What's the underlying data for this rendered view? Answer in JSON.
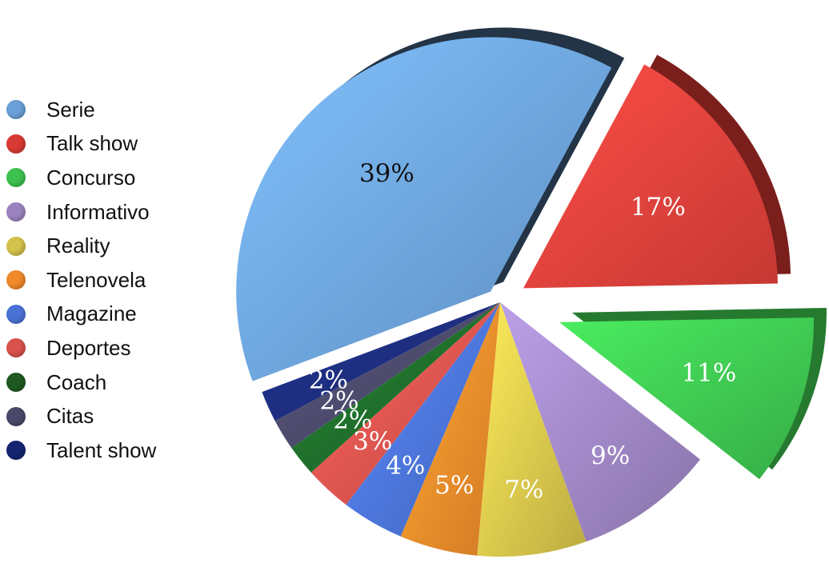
{
  "chart_data": {
    "type": "pie",
    "categories": [
      "Serie",
      "Talk show",
      "Concurso",
      "Informativo",
      "Reality",
      "Telenovela",
      "Magazine",
      "Deportes",
      "Coach",
      "Citas",
      "Talent show"
    ],
    "values": [
      39,
      17,
      11,
      9,
      7,
      5,
      4,
      3,
      2,
      2,
      2
    ],
    "labels": [
      "39%",
      "17%",
      "11%",
      "9%",
      "7%",
      "5%",
      "4%",
      "3%",
      "2%",
      "2%",
      "2%"
    ],
    "colors": [
      "#6a9fd8",
      "#e0403a",
      "#3dc24f",
      "#9b83bf",
      "#d4c24a",
      "#f08a2a",
      "#4a72d6",
      "#d9524c",
      "#1e6b2a",
      "#4a4868",
      "#1c2c7a"
    ],
    "exploded": [
      "Serie",
      "Talk show",
      "Concurso"
    ],
    "legend_position": "left",
    "style": "3d-exploded-pie"
  },
  "legend": {
    "items": [
      {
        "label": "Serie",
        "color": "#6a9fd8"
      },
      {
        "label": "Talk show",
        "color": "#d93a33"
      },
      {
        "label": "Concurso",
        "color": "#3dc24f"
      },
      {
        "label": "Informativo",
        "color": "#9b83bf"
      },
      {
        "label": "Reality",
        "color": "#d4c24a"
      },
      {
        "label": "Telenovela",
        "color": "#f08a2a"
      },
      {
        "label": "Magazine",
        "color": "#4a72d6"
      },
      {
        "label": "Deportes",
        "color": "#d9524c"
      },
      {
        "label": "Coach",
        "color": "#1e5a22"
      },
      {
        "label": "Citas",
        "color": "#4a4868"
      },
      {
        "label": "Talent show",
        "color": "#142470"
      }
    ]
  }
}
